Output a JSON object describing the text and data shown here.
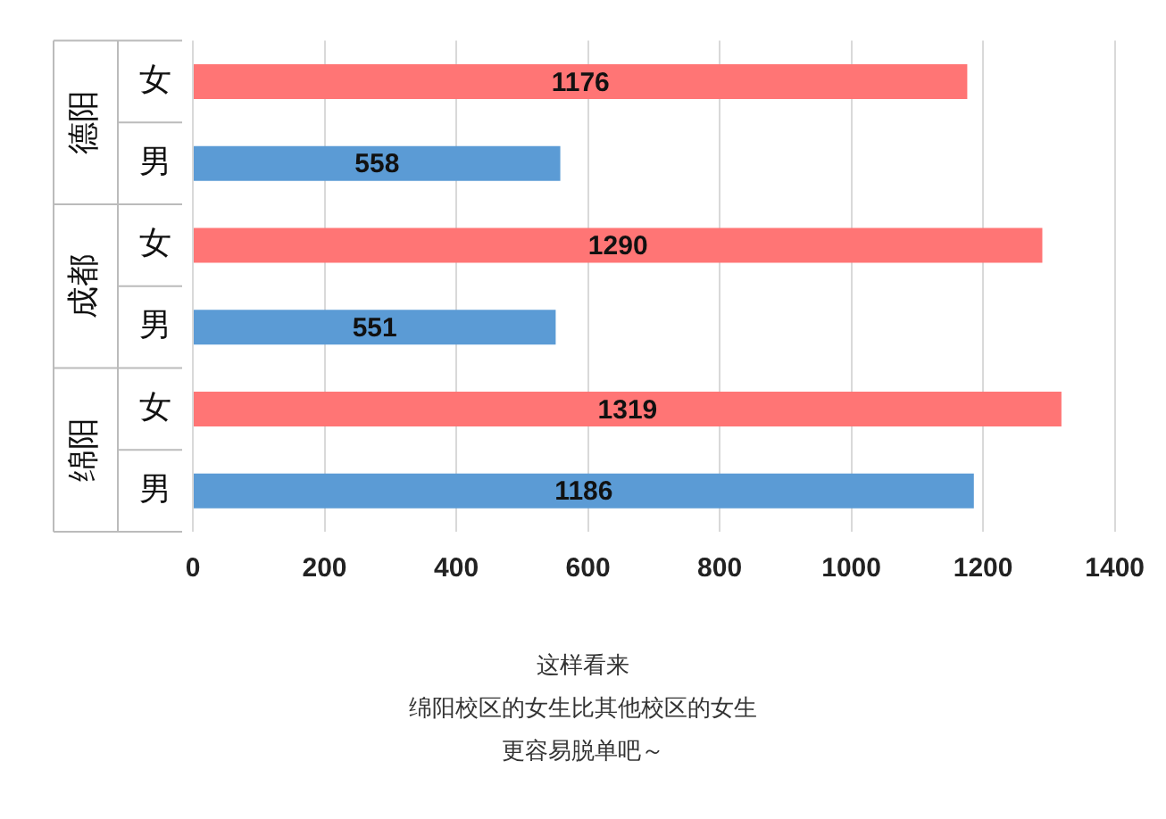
{
  "chart_data": {
    "type": "bar",
    "orientation": "horizontal",
    "categories": [
      "女",
      "男",
      "女",
      "男",
      "女",
      "男"
    ],
    "values": [
      1176,
      558,
      1290,
      551,
      1319,
      1186
    ],
    "colors": [
      "#ff7575",
      "#5b9bd5",
      "#ff7575",
      "#5b9bd5",
      "#ff7575",
      "#5b9bd5"
    ],
    "xlim": [
      0,
      1400
    ],
    "xticks": [
      0,
      200,
      400,
      600,
      800,
      1000,
      1200,
      1400
    ],
    "grid": "x",
    "data_labels": true,
    "legend": false,
    "annotations": [
      "德阳",
      "成都",
      "绵阳",
      "这样看来",
      "绵阳校区的女生比其他校区的女生",
      "更容易脱单吧～"
    ]
  }
}
